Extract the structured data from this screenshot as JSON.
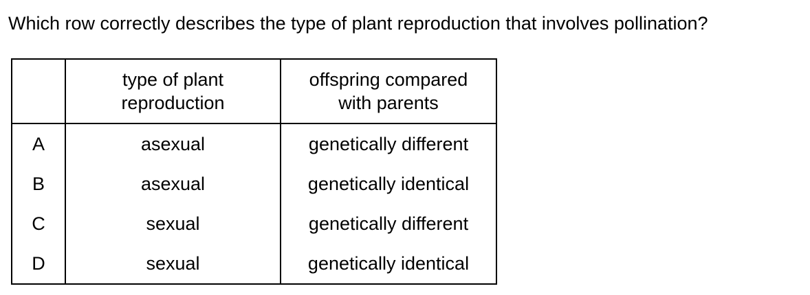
{
  "question": "Which row correctly describes the type of plant reproduction that involves pollination?",
  "table": {
    "headers": {
      "type_line1": "type of plant",
      "type_line2": "reproduction",
      "offspring_line1": "offspring compared",
      "offspring_line2": "with parents"
    },
    "rows": [
      {
        "letter": "A",
        "type": "asexual",
        "offspring": "genetically different"
      },
      {
        "letter": "B",
        "type": "asexual",
        "offspring": "genetically identical"
      },
      {
        "letter": "C",
        "type": "sexual",
        "offspring": "genetically different"
      },
      {
        "letter": "D",
        "type": "sexual",
        "offspring": "genetically identical"
      }
    ]
  }
}
